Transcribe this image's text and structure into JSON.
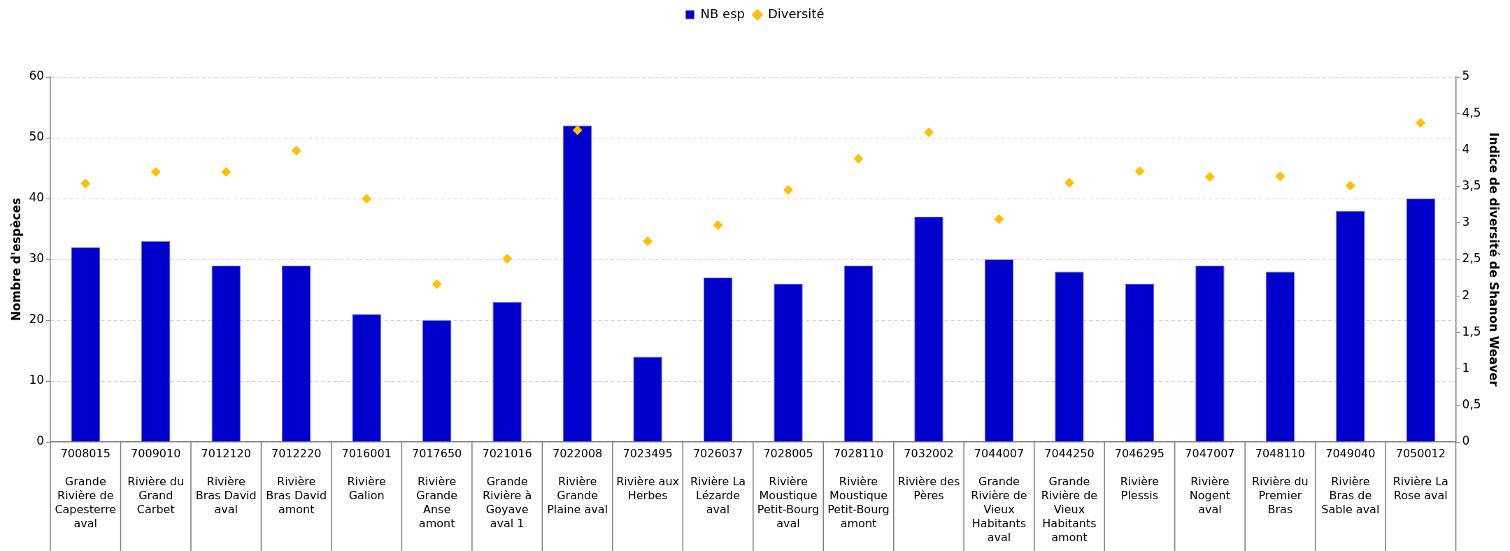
{
  "chart_data": {
    "type": "bar",
    "ylabel": "Nombre d'espèces",
    "y2label": "Indice de diversité de Shanon Weaver",
    "categories": [
      "7008015\nGrande Rivière de Capesterre aval",
      "7009010\nRivière du Grand Carbet",
      "7012120\nRivière Bras David aval",
      "7012220\nRivière Bras David amont",
      "7016001\nRivière Galion",
      "7017650\nRivière Grande Anse amont",
      "7021016\nGrande Rivière à Goyave aval 1",
      "7022008\nRivière Grande Plaine aval",
      "7023495\nRivière aux Herbes",
      "7026037\nRivière La Lézarde aval",
      "7028005\nRivière Moustique Petit-Bourg aval",
      "7028110\nRivière Moustique Petit-Bourg amont",
      "7032002\nRivière des Pères",
      "7044007\nGrande Rivière de Vieux Habitants aval",
      "7044250\nGrande Rivière de Vieux Habitants amont",
      "7046295\nRivière Plessis",
      "7047007\nRivière Nogent aval",
      "7048110\nRivière du Premier Bras",
      "7049040\nRivière Bras de Sable aval",
      "7050012\nRivière La Rose aval"
    ],
    "series": [
      {
        "name": "NB esp",
        "color": "#0000cc",
        "values": [
          32,
          33,
          29,
          29,
          21,
          20,
          23,
          52,
          14,
          27,
          26,
          29,
          37,
          30,
          28,
          26,
          29,
          28,
          38,
          40
        ]
      },
      {
        "name": "Diversité",
        "type": "scatter",
        "axis": "y2",
        "color": "#ffc000",
        "marker": "diamond",
        "values": [
          3.54,
          3.7,
          3.7,
          3.99,
          3.33,
          2.16,
          2.51,
          4.27,
          2.75,
          2.97,
          3.45,
          3.88,
          4.24,
          3.05,
          3.55,
          3.71,
          3.63,
          3.64,
          3.51,
          4.37
        ]
      }
    ],
    "ylim": [
      0,
      60
    ],
    "yticks": [
      0,
      10,
      20,
      30,
      40,
      50,
      60
    ],
    "y2lim": [
      0,
      5
    ],
    "y2ticks": [
      0,
      {
        "value": 0.5,
        "label": "0,5"
      },
      1,
      {
        "value": 1.5,
        "label": "1,5"
      },
      2,
      {
        "value": 2.5,
        "label": "2,5"
      },
      3,
      {
        "value": 3.5,
        "label": "3,5"
      },
      4,
      {
        "value": 4.5,
        "label": "4,5"
      },
      5
    ],
    "grid": "y",
    "legend": "top"
  }
}
